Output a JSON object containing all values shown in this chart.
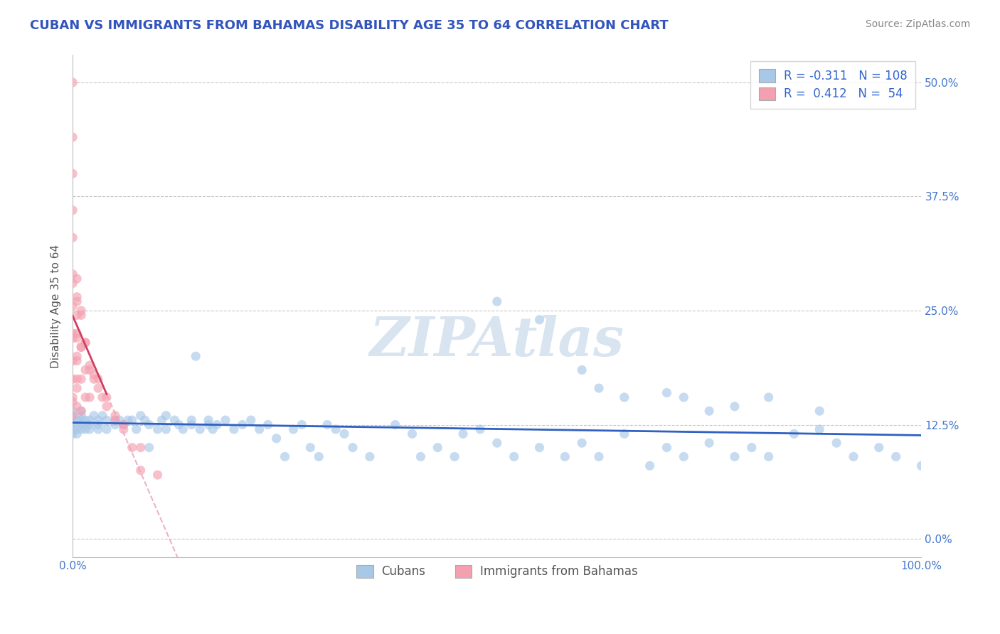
{
  "title": "CUBAN VS IMMIGRANTS FROM BAHAMAS DISABILITY AGE 35 TO 64 CORRELATION CHART",
  "source": "Source: ZipAtlas.com",
  "ylabel": "Disability Age 35 to 64",
  "xlim": [
    0.0,
    1.0
  ],
  "ylim": [
    -0.02,
    0.53
  ],
  "ytick_vals": [
    0.0,
    0.125,
    0.25,
    0.375,
    0.5
  ],
  "ytick_labels": [
    "0.0%",
    "12.5%",
    "25.0%",
    "37.5%",
    "50.0%"
  ],
  "xtick_vals": [
    0.0,
    1.0
  ],
  "xtick_labels": [
    "0.0%",
    "100.0%"
  ],
  "legend_label1": "Cubans",
  "legend_label2": "Immigrants from Bahamas",
  "r_cubans": -0.311,
  "r_bahamas": 0.412,
  "n_cubans": 108,
  "n_bahamas": 54,
  "color_cubans": "#a8c8e8",
  "color_bahamas": "#f4a0b0",
  "color_cubans_line": "#3060c0",
  "color_bahamas_line": "#d04060",
  "color_bahamas_dashed": "#e8a0b8",
  "background_color": "#ffffff",
  "title_color": "#3355bb",
  "source_color": "#888888",
  "watermark_color": "#d8e4f0",
  "grid_color": "#c8c8c8",
  "cubans_x": [
    0.0,
    0.0,
    0.0,
    0.0,
    0.0,
    0.0,
    0.005,
    0.005,
    0.005,
    0.01,
    0.01,
    0.01,
    0.01,
    0.01,
    0.015,
    0.015,
    0.02,
    0.02,
    0.02,
    0.025,
    0.03,
    0.03,
    0.03,
    0.035,
    0.04,
    0.04,
    0.05,
    0.05,
    0.055,
    0.06,
    0.065,
    0.07,
    0.075,
    0.08,
    0.085,
    0.09,
    0.09,
    0.1,
    0.105,
    0.11,
    0.11,
    0.12,
    0.125,
    0.13,
    0.14,
    0.14,
    0.145,
    0.15,
    0.16,
    0.16,
    0.165,
    0.17,
    0.18,
    0.19,
    0.2,
    0.21,
    0.22,
    0.23,
    0.24,
    0.25,
    0.26,
    0.27,
    0.28,
    0.29,
    0.3,
    0.31,
    0.32,
    0.33,
    0.35,
    0.38,
    0.4,
    0.41,
    0.43,
    0.45,
    0.46,
    0.48,
    0.5,
    0.52,
    0.55,
    0.58,
    0.6,
    0.62,
    0.65,
    0.68,
    0.7,
    0.72,
    0.75,
    0.78,
    0.8,
    0.82,
    0.85,
    0.88,
    0.9,
    0.92,
    0.95,
    0.97,
    1.0,
    0.5,
    0.55,
    0.6,
    0.62,
    0.65,
    0.7,
    0.72,
    0.75,
    0.78,
    0.82,
    0.88
  ],
  "cubans_y": [
    0.135,
    0.13,
    0.14,
    0.12,
    0.125,
    0.115,
    0.13,
    0.12,
    0.115,
    0.14,
    0.135,
    0.13,
    0.125,
    0.12,
    0.13,
    0.12,
    0.125,
    0.13,
    0.12,
    0.135,
    0.13,
    0.125,
    0.12,
    0.135,
    0.13,
    0.12,
    0.125,
    0.13,
    0.13,
    0.125,
    0.13,
    0.13,
    0.12,
    0.135,
    0.13,
    0.1,
    0.125,
    0.12,
    0.13,
    0.135,
    0.12,
    0.13,
    0.125,
    0.12,
    0.13,
    0.125,
    0.2,
    0.12,
    0.125,
    0.13,
    0.12,
    0.125,
    0.13,
    0.12,
    0.125,
    0.13,
    0.12,
    0.125,
    0.11,
    0.09,
    0.12,
    0.125,
    0.1,
    0.09,
    0.125,
    0.12,
    0.115,
    0.1,
    0.09,
    0.125,
    0.115,
    0.09,
    0.1,
    0.09,
    0.115,
    0.12,
    0.105,
    0.09,
    0.1,
    0.09,
    0.105,
    0.09,
    0.115,
    0.08,
    0.1,
    0.09,
    0.105,
    0.09,
    0.1,
    0.09,
    0.115,
    0.12,
    0.105,
    0.09,
    0.1,
    0.09,
    0.08,
    0.26,
    0.24,
    0.185,
    0.165,
    0.155,
    0.16,
    0.155,
    0.14,
    0.145,
    0.155,
    0.14
  ],
  "bahamas_x": [
    0.0,
    0.0,
    0.0,
    0.005,
    0.005,
    0.005,
    0.005,
    0.005,
    0.01,
    0.01,
    0.01,
    0.01,
    0.015,
    0.015,
    0.015,
    0.02,
    0.02,
    0.025,
    0.03,
    0.035,
    0.04,
    0.05,
    0.06,
    0.07,
    0.08,
    0.0,
    0.0,
    0.0,
    0.0,
    0.0,
    0.0,
    0.0,
    0.0,
    0.0,
    0.0,
    0.0,
    0.0,
    0.005,
    0.005,
    0.005,
    0.005,
    0.005,
    0.005,
    0.01,
    0.01,
    0.015,
    0.02,
    0.025,
    0.03,
    0.04,
    0.05,
    0.06,
    0.08,
    0.1
  ],
  "bahamas_y": [
    0.28,
    0.22,
    0.15,
    0.26,
    0.22,
    0.2,
    0.175,
    0.145,
    0.25,
    0.21,
    0.175,
    0.14,
    0.215,
    0.185,
    0.155,
    0.185,
    0.155,
    0.175,
    0.165,
    0.155,
    0.145,
    0.13,
    0.12,
    0.1,
    0.075,
    0.5,
    0.44,
    0.4,
    0.36,
    0.33,
    0.29,
    0.255,
    0.225,
    0.195,
    0.175,
    0.155,
    0.135,
    0.285,
    0.265,
    0.245,
    0.225,
    0.195,
    0.165,
    0.245,
    0.21,
    0.215,
    0.19,
    0.18,
    0.175,
    0.155,
    0.135,
    0.125,
    0.1,
    0.07
  ],
  "title_fontsize": 13,
  "axis_label_fontsize": 11,
  "tick_fontsize": 11,
  "legend_fontsize": 12,
  "source_fontsize": 10
}
